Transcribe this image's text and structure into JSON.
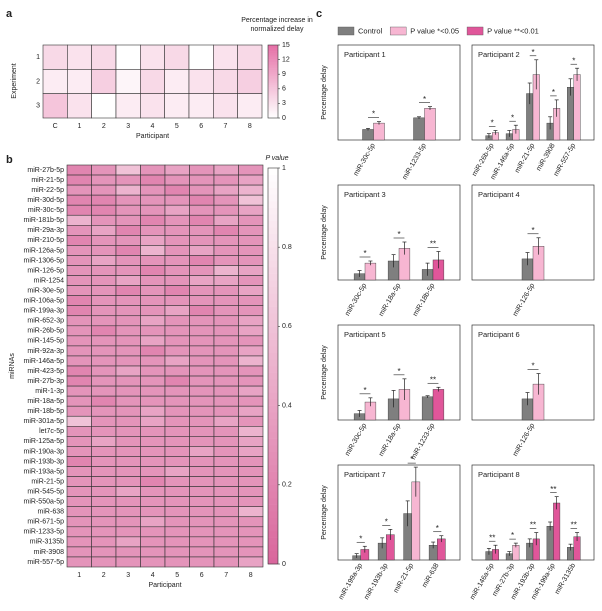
{
  "chart_data": [
    {
      "type": "heatmap",
      "panel": "a",
      "xlabel": "Participant",
      "ylabel": "Experiment",
      "x_categories": [
        "C",
        "1",
        "2",
        "3",
        "4",
        "5",
        "6",
        "7",
        "8"
      ],
      "y_categories": [
        "1",
        "2",
        "3"
      ],
      "values": [
        [
          4,
          3,
          4,
          0,
          3,
          4,
          0,
          3,
          4
        ],
        [
          2,
          2,
          5,
          1,
          4,
          2,
          3,
          4,
          5
        ],
        [
          6,
          3,
          0,
          2,
          3,
          2,
          2,
          3,
          2
        ]
      ],
      "colorbar": {
        "label": [
          "Percentage increase in",
          "normalized delay"
        ],
        "lim": [
          0,
          15
        ],
        "ticks": [
          0,
          3,
          6,
          9,
          12,
          15
        ],
        "colors": [
          "#ffffff",
          "#e56fa6"
        ]
      }
    },
    {
      "type": "heatmap",
      "panel": "b",
      "xlabel": "Participant",
      "ylabel": "miRNAs",
      "x_categories": [
        "1",
        "2",
        "3",
        "4",
        "5",
        "6",
        "7",
        "8"
      ],
      "y_categories": [
        "miR-27b-5p",
        "miR-21-5p",
        "miR-22-5p",
        "miR-30d-5p",
        "miR-30c-5p",
        "miR-181b-5p",
        "miR-29a-3p",
        "miR-210-5p",
        "miR-126a-5p",
        "miR-1306-5p",
        "miR-126-5p",
        "miR-1254",
        "miR-30e-5p",
        "miR-106a-5p",
        "miR-199a-3p",
        "miR-652-3p",
        "miR-26b-5p",
        "miR-145-5p",
        "miR-92a-3p",
        "miR-146a-5p",
        "miR-423-5p",
        "miR-27b-3p",
        "miR-1-3p",
        "miR-18a-5p",
        "miR-18b-5p",
        "miR-301a-5p",
        "let7c-5p",
        "miR-125a-5p",
        "miR-190a-3p",
        "miR-193b-3p",
        "miR-193a-5p",
        "miR-21-5p",
        "miR-545-5p",
        "miR-550a-5p",
        "miR-638",
        "miR-671-5p",
        "miR-1233-5p",
        "miR-3135b",
        "miR-3908",
        "miR-557-5p"
      ],
      "values": [
        [
          0.2,
          0.3,
          0.6,
          0.3,
          0.4,
          0.3,
          0.4,
          0.3
        ],
        [
          0.2,
          0.3,
          0.3,
          0.2,
          0.3,
          0.3,
          0.3,
          0.4
        ],
        [
          0.3,
          0.3,
          0.5,
          0.3,
          0.2,
          0.3,
          0.4,
          0.5
        ],
        [
          0.2,
          0.2,
          0.3,
          0.3,
          0.3,
          0.2,
          0.3,
          0.6
        ],
        [
          0.2,
          0.2,
          0.3,
          0.3,
          0.4,
          0.3,
          0.3,
          0.4
        ],
        [
          0.5,
          0.3,
          0.3,
          0.2,
          0.3,
          0.2,
          0.4,
          0.3
        ],
        [
          0.3,
          0.4,
          0.2,
          0.3,
          0.3,
          0.3,
          0.2,
          0.3
        ],
        [
          0.2,
          0.3,
          0.3,
          0.4,
          0.3,
          0.3,
          0.3,
          0.3
        ],
        [
          0.3,
          0.3,
          0.2,
          0.5,
          0.3,
          0.4,
          0.3,
          0.3
        ],
        [
          0.3,
          0.4,
          0.3,
          0.3,
          0.3,
          0.2,
          0.3,
          0.3
        ],
        [
          0.3,
          0.3,
          0.3,
          0.2,
          0.3,
          0.3,
          0.5,
          0.4
        ],
        [
          0.3,
          0.3,
          0.4,
          0.3,
          0.3,
          0.4,
          0.4,
          0.3
        ],
        [
          0.3,
          0.3,
          0.2,
          0.3,
          0.2,
          0.3,
          0.3,
          0.4
        ],
        [
          0.2,
          0.3,
          0.3,
          0.3,
          0.3,
          0.3,
          0.3,
          0.3
        ],
        [
          0.2,
          0.3,
          0.3,
          0.3,
          0.4,
          0.2,
          0.3,
          0.3
        ],
        [
          0.3,
          0.3,
          0.3,
          0.4,
          0.3,
          0.3,
          0.3,
          0.4
        ],
        [
          0.3,
          0.2,
          0.3,
          0.3,
          0.3,
          0.3,
          0.3,
          0.4
        ],
        [
          0.3,
          0.3,
          0.3,
          0.4,
          0.3,
          0.3,
          0.3,
          0.3
        ],
        [
          0.3,
          0.3,
          0.3,
          0.2,
          0.3,
          0.3,
          0.3,
          0.4
        ],
        [
          0.3,
          0.3,
          0.3,
          0.3,
          0.4,
          0.3,
          0.3,
          0.5
        ],
        [
          0.2,
          0.3,
          0.4,
          0.3,
          0.3,
          0.3,
          0.3,
          0.3
        ],
        [
          0.2,
          0.3,
          0.3,
          0.3,
          0.2,
          0.3,
          0.3,
          0.3
        ],
        [
          0.3,
          0.3,
          0.3,
          0.3,
          0.3,
          0.3,
          0.3,
          0.4
        ],
        [
          0.3,
          0.2,
          0.3,
          0.3,
          0.3,
          0.3,
          0.3,
          0.3
        ],
        [
          0.3,
          0.3,
          0.3,
          0.4,
          0.3,
          0.3,
          0.3,
          0.4
        ],
        [
          0.6,
          0.3,
          0.3,
          0.4,
          0.3,
          0.3,
          0.4,
          0.3
        ],
        [
          0.3,
          0.3,
          0.3,
          0.3,
          0.3,
          0.3,
          0.3,
          0.5
        ],
        [
          0.3,
          0.4,
          0.3,
          0.3,
          0.3,
          0.3,
          0.3,
          0.4
        ],
        [
          0.3,
          0.3,
          0.3,
          0.3,
          0.3,
          0.4,
          0.3,
          0.4
        ],
        [
          0.2,
          0.3,
          0.3,
          0.3,
          0.3,
          0.3,
          0.3,
          0.3
        ],
        [
          0.3,
          0.3,
          0.3,
          0.3,
          0.4,
          0.3,
          0.3,
          0.3
        ],
        [
          0.3,
          0.3,
          0.3,
          0.2,
          0.3,
          0.3,
          0.3,
          0.3
        ],
        [
          0.3,
          0.3,
          0.4,
          0.3,
          0.3,
          0.3,
          0.3,
          0.3
        ],
        [
          0.3,
          0.3,
          0.3,
          0.3,
          0.3,
          0.3,
          0.3,
          0.3
        ],
        [
          0.3,
          0.3,
          0.3,
          0.3,
          0.3,
          0.3,
          0.3,
          0.5
        ],
        [
          0.3,
          0.3,
          0.3,
          0.4,
          0.3,
          0.3,
          0.3,
          0.3
        ],
        [
          0.3,
          0.3,
          0.3,
          0.3,
          0.3,
          0.3,
          0.3,
          0.3
        ],
        [
          0.3,
          0.3,
          0.4,
          0.3,
          0.3,
          0.3,
          0.3,
          0.3
        ],
        [
          0.3,
          0.3,
          0.3,
          0.3,
          0.3,
          0.3,
          0.3,
          0.3
        ],
        [
          0.3,
          0.3,
          0.3,
          0.3,
          0.3,
          0.3,
          0.3,
          0.4
        ]
      ],
      "colorbar": {
        "label": [
          "P value"
        ],
        "lim": [
          0,
          1
        ],
        "ticks": [
          0,
          0.2,
          0.4,
          0.6,
          0.8,
          1
        ],
        "colors": [
          "#d9669c",
          "#ffffff"
        ]
      }
    },
    {
      "type": "bar",
      "panel": "c",
      "title": "Participant 1",
      "ylabel": "Percentage delay",
      "ylim": [
        0,
        45
      ],
      "legend": [
        {
          "name": "Control",
          "color": "#7f7f7f"
        },
        {
          "name": "P value *<0.05",
          "color": "#f7b6d2"
        },
        {
          "name": "P value **<0.01",
          "color": "#e0569a"
        }
      ],
      "categories": [
        "miR-30c-5p",
        "miR-1233-5p"
      ],
      "control": {
        "color": "#7f7f7f",
        "values": [
          5,
          10.5
        ],
        "errors": [
          0.5,
          0.5
        ]
      },
      "treated": {
        "colors": [
          "#f7b6d2",
          "#f7b6d2"
        ],
        "values": [
          8,
          15
        ],
        "errors": [
          0.7,
          0.8
        ],
        "significance": [
          "*",
          "*"
        ]
      }
    },
    {
      "type": "bar",
      "title": "Participant 2",
      "ylim": [
        0,
        45
      ],
      "categories": [
        "miR-26b-5p",
        "miR-146a-5p",
        "miR-21-5p",
        "miR-3908",
        "miR-557-5p"
      ],
      "control": {
        "color": "#7f7f7f",
        "values": [
          2,
          3,
          22,
          8,
          25
        ],
        "errors": [
          1,
          1.5,
          5,
          3,
          4
        ]
      },
      "treated": {
        "colors": [
          "#f7b6d2",
          "#f7b6d2",
          "#f7b6d2",
          "#f7b6d2",
          "#f7b6d2"
        ],
        "values": [
          3.5,
          5,
          31,
          15,
          31
        ],
        "errors": [
          1,
          2,
          7,
          4,
          3
        ],
        "significance": [
          "*",
          "*",
          "*",
          "*",
          "*"
        ]
      }
    },
    {
      "type": "bar",
      "title": "Participant 3",
      "ylabel": "Percentage delay",
      "ylim": [
        0,
        45
      ],
      "categories": [
        "miR-30c-5p",
        "miR-18a-5p",
        "miR-18b-5p"
      ],
      "control": {
        "color": "#7f7f7f",
        "values": [
          3,
          9,
          5
        ],
        "errors": [
          1.5,
          3,
          3
        ]
      },
      "treated": {
        "colors": [
          "#f7b6d2",
          "#f7b6d2",
          "#e0569a"
        ],
        "values": [
          8,
          15,
          9.5
        ],
        "errors": [
          1,
          3,
          4
        ],
        "significance": [
          "*",
          "*",
          "**"
        ]
      }
    },
    {
      "type": "bar",
      "title": "Participant 4",
      "ylim": [
        0,
        45
      ],
      "categories": [
        "miR-126-5p"
      ],
      "control": {
        "color": "#7f7f7f",
        "values": [
          10
        ],
        "errors": [
          3
        ]
      },
      "treated": {
        "colors": [
          "#f7b6d2"
        ],
        "values": [
          16
        ],
        "errors": [
          4
        ],
        "significance": [
          "*"
        ]
      }
    },
    {
      "type": "bar",
      "title": "Participant 5",
      "ylabel": "Percentage delay",
      "ylim": [
        0,
        45
      ],
      "categories": [
        "miR-30c-5p",
        "miR-18a-5p",
        "miR-1233-5p"
      ],
      "control": {
        "color": "#7f7f7f",
        "values": [
          3,
          10,
          11
        ],
        "errors": [
          1.5,
          4,
          0.5
        ]
      },
      "treated": {
        "colors": [
          "#f7b6d2",
          "#f7b6d2",
          "#e0569a"
        ],
        "values": [
          8.5,
          14.5,
          14.5
        ],
        "errors": [
          2,
          5,
          1
        ],
        "significance": [
          "*",
          "*",
          "**"
        ]
      }
    },
    {
      "type": "bar",
      "title": "Participant 6",
      "ylim": [
        0,
        45
      ],
      "categories": [
        "miR-126-5p"
      ],
      "control": {
        "color": "#7f7f7f",
        "values": [
          10
        ],
        "errors": [
          3
        ]
      },
      "treated": {
        "colors": [
          "#f7b6d2"
        ],
        "values": [
          17
        ],
        "errors": [
          5
        ],
        "significance": [
          "*"
        ]
      }
    },
    {
      "type": "bar",
      "title": "Participant 7",
      "ylabel": "Percentage delay",
      "ylim": [
        0,
        45
      ],
      "categories": [
        "miR-199a-3p",
        "miR-193b-3p",
        "miR-21-5p",
        "miR-638"
      ],
      "control": {
        "color": "#7f7f7f",
        "values": [
          2,
          8,
          22,
          7
        ],
        "errors": [
          1,
          2.5,
          6,
          1.5
        ]
      },
      "treated": {
        "colors": [
          "#e0569a",
          "#e0569a",
          "#f7b6d2",
          "#e0569a"
        ],
        "values": [
          5,
          12,
          37,
          10
        ],
        "errors": [
          1.5,
          2.5,
          7,
          1.5
        ],
        "significance": [
          "*",
          "*",
          "*",
          "*"
        ]
      }
    },
    {
      "type": "bar",
      "title": "Participant 8",
      "ylim": [
        0,
        45
      ],
      "categories": [
        "miR-146a-5p",
        "miR-27b-3p",
        "miR-193b-3p",
        "miR-199a-5p",
        "miR-3135b"
      ],
      "control": {
        "color": "#7f7f7f",
        "values": [
          4,
          3,
          8,
          16,
          6
        ],
        "errors": [
          1.5,
          1,
          2,
          2,
          1.5
        ]
      },
      "treated": {
        "colors": [
          "#e0569a",
          "#f7b6d2",
          "#e0569a",
          "#e0569a",
          "#e0569a"
        ],
        "values": [
          5,
          7,
          10,
          27,
          11
        ],
        "errors": [
          2,
          1,
          3,
          3,
          2
        ],
        "significance": [
          "**",
          "*",
          "**",
          "**",
          "**"
        ]
      }
    }
  ]
}
